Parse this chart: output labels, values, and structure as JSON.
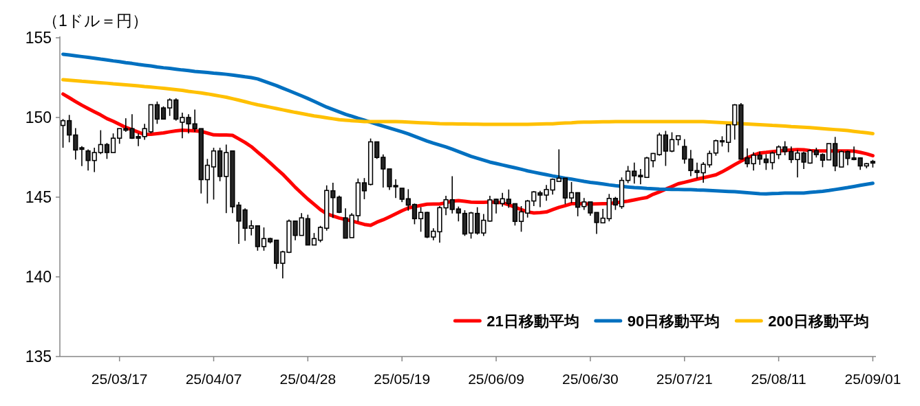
{
  "chart_data": {
    "type": "candlestick",
    "ylabel": "（1ドル＝円）",
    "categories": [
      null,
      null,
      null,
      null,
      null,
      null,
      null,
      null,
      null,
      "25/03/17",
      null,
      null,
      null,
      null,
      null,
      null,
      null,
      null,
      null,
      null,
      null,
      null,
      null,
      null,
      "25/04/07",
      null,
      null,
      null,
      null,
      null,
      null,
      null,
      null,
      null,
      null,
      null,
      null,
      null,
      null,
      "25/04/28",
      null,
      null,
      null,
      null,
      null,
      null,
      null,
      null,
      null,
      null,
      null,
      null,
      null,
      null,
      "25/05/19",
      null,
      null,
      null,
      null,
      null,
      null,
      null,
      null,
      null,
      null,
      null,
      null,
      null,
      null,
      "25/06/09",
      null,
      null,
      null,
      null,
      null,
      null,
      null,
      null,
      null,
      null,
      null,
      null,
      null,
      null,
      "25/06/30",
      null,
      null,
      null,
      null,
      null,
      null,
      null,
      null,
      null,
      null,
      null,
      null,
      null,
      null,
      "25/07/21",
      null,
      null,
      null,
      null,
      null,
      null,
      null,
      null,
      null,
      null,
      null,
      null,
      null,
      null,
      "25/08/11",
      null,
      null,
      null,
      null,
      null,
      null,
      null,
      null,
      null,
      null,
      null,
      null,
      null,
      null,
      "25/09/01"
    ],
    "ohlc": [
      [
        149.5,
        149.9,
        148.1,
        149.8
      ],
      [
        149.8,
        150.16,
        148.44,
        148.9
      ],
      [
        148.9,
        149.33,
        147.36,
        147.96
      ],
      [
        148.1,
        148.2,
        146.95,
        148.0
      ],
      [
        147.9,
        148.0,
        146.67,
        147.3
      ],
      [
        147.3,
        148.1,
        146.57,
        147.8
      ],
      [
        147.8,
        149.2,
        147.7,
        148.3
      ],
      [
        148.3,
        148.4,
        147.4,
        147.8
      ],
      [
        147.8,
        149.0,
        147.8,
        148.7
      ],
      [
        148.7,
        149.3,
        148.35,
        149.3
      ],
      [
        149.3,
        149.95,
        149.1,
        149.2
      ],
      [
        149.3,
        150.2,
        148.65,
        148.7
      ],
      [
        148.8,
        149.0,
        148.2,
        148.7
      ],
      [
        148.8,
        149.6,
        148.6,
        149.3
      ],
      [
        149.1,
        150.8,
        149.0,
        150.8
      ],
      [
        150.8,
        151.0,
        149.6,
        149.9
      ],
      [
        150.6,
        150.7,
        149.9,
        149.9
      ],
      [
        150.6,
        151.2,
        150.1,
        151.1
      ],
      [
        151.1,
        151.2,
        149.8,
        149.9
      ],
      [
        149.7,
        150.3,
        148.7,
        150.0
      ],
      [
        150.0,
        150.2,
        149.0,
        149.6
      ],
      [
        149.6,
        150.5,
        149.1,
        149.3
      ],
      [
        149.3,
        149.3,
        145.23,
        146.1
      ],
      [
        146.1,
        147.4,
        144.6,
        147.0
      ],
      [
        146.9,
        148.1,
        144.85,
        147.9
      ],
      [
        147.9,
        148.1,
        146.0,
        146.3
      ],
      [
        146.3,
        148.3,
        144.0,
        147.8
      ],
      [
        147.9,
        147.9,
        144.0,
        144.4
      ],
      [
        144.5,
        144.7,
        142.07,
        143.5
      ],
      [
        144.2,
        144.3,
        142.26,
        143.05
      ],
      [
        143.05,
        143.55,
        142.6,
        143.2
      ],
      [
        143.2,
        143.2,
        141.64,
        141.9
      ],
      [
        141.9,
        143.1,
        141.64,
        142.4
      ],
      [
        142.4,
        142.46,
        142.1,
        142.2
      ],
      [
        142.3,
        142.3,
        140.5,
        140.85
      ],
      [
        140.85,
        141.64,
        139.9,
        141.57
      ],
      [
        141.54,
        143.6,
        141.5,
        143.5
      ],
      [
        143.5,
        143.5,
        142.3,
        142.6
      ],
      [
        142.6,
        144.0,
        142.6,
        143.7
      ],
      [
        143.65,
        143.9,
        142.0,
        142.0
      ],
      [
        142.0,
        142.75,
        142.0,
        142.4
      ],
      [
        142.3,
        143.2,
        142.17,
        143.1
      ],
      [
        143.05,
        145.74,
        142.9,
        145.42
      ],
      [
        145.4,
        145.9,
        143.7,
        144.97
      ],
      [
        145.0,
        145.1,
        144.0,
        144.05
      ],
      [
        143.7,
        144.3,
        142.43,
        142.43
      ],
      [
        142.46,
        144.0,
        142.46,
        143.87
      ],
      [
        143.84,
        146.17,
        143.47,
        145.9
      ],
      [
        145.9,
        146.2,
        144.87,
        145.4
      ],
      [
        145.8,
        148.68,
        145.74,
        148.47
      ],
      [
        148.47,
        148.47,
        147.4,
        147.49
      ],
      [
        147.5,
        147.68,
        145.6,
        146.77
      ],
      [
        146.77,
        146.77,
        145.45,
        145.66
      ],
      [
        145.73,
        146.12,
        144.95,
        145.65
      ],
      [
        145.56,
        145.56,
        144.69,
        144.87
      ],
      [
        144.9,
        145.5,
        144.15,
        144.5
      ],
      [
        144.54,
        144.6,
        143.3,
        143.65
      ],
      [
        143.65,
        144.37,
        142.83,
        144.04
      ],
      [
        144.04,
        144.08,
        142.43,
        142.5
      ],
      [
        142.5,
        143.05,
        142.29,
        142.86
      ],
      [
        142.83,
        144.44,
        142.14,
        144.34
      ],
      [
        144.33,
        145.09,
        143.87,
        144.84
      ],
      [
        144.84,
        146.31,
        143.98,
        144.23
      ],
      [
        144.26,
        144.41,
        143.48,
        144.01
      ],
      [
        143.98,
        144.18,
        142.57,
        142.69
      ],
      [
        142.75,
        144.08,
        142.4,
        144.01
      ],
      [
        143.98,
        144.37,
        142.65,
        142.75
      ],
      [
        142.75,
        143.94,
        142.57,
        143.55
      ],
      [
        143.5,
        145.09,
        143.47,
        144.83
      ],
      [
        144.87,
        144.9,
        143.98,
        144.59
      ],
      [
        144.6,
        145.27,
        144.41,
        144.9
      ],
      [
        144.87,
        145.48,
        144.33,
        144.59
      ],
      [
        144.59,
        144.59,
        143.22,
        143.48
      ],
      [
        143.48,
        144.44,
        142.83,
        144.08
      ],
      [
        144.0,
        144.83,
        143.72,
        144.76
      ],
      [
        144.76,
        145.38,
        144.44,
        145.33
      ],
      [
        145.27,
        145.4,
        144.37,
        145.13
      ],
      [
        145.13,
        145.76,
        144.77,
        145.48
      ],
      [
        145.45,
        146.17,
        145.16,
        146.12
      ],
      [
        145.99,
        148.0,
        145.99,
        146.19
      ],
      [
        146.19,
        146.19,
        144.56,
        144.95
      ],
      [
        144.95,
        145.95,
        144.63,
        145.28
      ],
      [
        145.28,
        145.28,
        143.8,
        144.37
      ],
      [
        144.41,
        144.95,
        144.2,
        144.7
      ],
      [
        144.7,
        144.7,
        143.84,
        144.01
      ],
      [
        144.04,
        144.04,
        142.69,
        143.41
      ],
      [
        143.39,
        144.27,
        143.37,
        143.68
      ],
      [
        143.65,
        145.2,
        143.48,
        144.92
      ],
      [
        144.92,
        145.02,
        144.2,
        144.51
      ],
      [
        144.41,
        146.24,
        144.27,
        146.05
      ],
      [
        146.05,
        146.96,
        145.88,
        146.63
      ],
      [
        146.63,
        147.17,
        145.85,
        146.34
      ],
      [
        146.37,
        146.77,
        145.81,
        146.28
      ],
      [
        146.24,
        147.53,
        146.21,
        147.46
      ],
      [
        147.29,
        147.77,
        146.88,
        147.74
      ],
      [
        147.67,
        149.04,
        147.6,
        148.9
      ],
      [
        148.9,
        149.16,
        146.96,
        147.89
      ],
      [
        147.89,
        149.07,
        147.82,
        148.61
      ],
      [
        148.61,
        148.85,
        148.25,
        148.85
      ],
      [
        148.18,
        148.64,
        147.1,
        147.39
      ],
      [
        147.39,
        147.96,
        146.31,
        146.67
      ],
      [
        146.67,
        147.17,
        146.17,
        146.55
      ],
      [
        146.53,
        147.2,
        145.91,
        147.06
      ],
      [
        147.03,
        147.92,
        146.86,
        147.74
      ],
      [
        147.77,
        148.61,
        147.6,
        148.54
      ],
      [
        148.54,
        148.82,
        148.18,
        148.47
      ],
      [
        148.44,
        149.54,
        147.82,
        149.54
      ],
      [
        149.54,
        150.84,
        148.61,
        150.79
      ],
      [
        150.79,
        150.91,
        147.39,
        147.39
      ],
      [
        147.46,
        148.06,
        146.88,
        147.1
      ],
      [
        147.1,
        147.82,
        146.67,
        147.63
      ],
      [
        147.63,
        147.86,
        147.03,
        147.39
      ],
      [
        147.39,
        147.7,
        146.71,
        147.17
      ],
      [
        147.17,
        147.86,
        146.74,
        147.77
      ],
      [
        147.67,
        148.25,
        147.39,
        148.15
      ],
      [
        148.15,
        148.51,
        147.63,
        147.86
      ],
      [
        147.86,
        148.18,
        147.14,
        147.36
      ],
      [
        147.36,
        147.96,
        146.24,
        147.77
      ],
      [
        147.77,
        147.86,
        146.77,
        147.2
      ],
      [
        147.14,
        148.0,
        147.1,
        147.92
      ],
      [
        147.92,
        148.1,
        147.49,
        147.67
      ],
      [
        147.67,
        147.75,
        146.88,
        147.32
      ],
      [
        147.34,
        148.36,
        147.34,
        148.36
      ],
      [
        148.36,
        148.78,
        146.63,
        146.96
      ],
      [
        146.89,
        147.92,
        146.86,
        147.86
      ],
      [
        147.86,
        147.92,
        147.0,
        147.43
      ],
      [
        147.46,
        148.18,
        147.32,
        147.36
      ],
      [
        147.46,
        147.49,
        146.71,
        146.96
      ],
      [
        146.96,
        147.14,
        146.81,
        147.1
      ],
      [
        147.24,
        147.34,
        146.86,
        147.14
      ]
    ],
    "series": [
      {
        "name": "21日移動平均",
        "type": "line",
        "color": "#ff0000",
        "values": [
          151.47,
          151.24,
          151.0,
          150.77,
          150.56,
          150.36,
          150.16,
          149.93,
          149.76,
          149.57,
          149.38,
          149.23,
          149.08,
          148.93,
          148.94,
          148.99,
          149.03,
          149.1,
          149.16,
          149.2,
          149.18,
          149.16,
          149.13,
          149.02,
          148.91,
          148.9,
          148.9,
          148.88,
          148.66,
          148.43,
          148.17,
          147.83,
          147.5,
          147.15,
          146.79,
          146.44,
          146.03,
          145.62,
          145.25,
          144.88,
          144.55,
          144.22,
          143.96,
          143.82,
          143.69,
          143.6,
          143.51,
          143.4,
          143.29,
          143.23,
          143.43,
          143.58,
          143.76,
          143.95,
          144.15,
          144.32,
          144.4,
          144.48,
          144.56,
          144.57,
          144.57,
          144.65,
          144.75,
          144.78,
          144.74,
          144.69,
          144.68,
          144.68,
          144.7,
          144.68,
          144.65,
          144.52,
          144.37,
          144.22,
          144.08,
          144.01,
          144.03,
          144.07,
          144.22,
          144.36,
          144.47,
          144.59,
          144.59,
          144.58,
          144.57,
          144.58,
          144.59,
          144.6,
          144.65,
          144.7,
          144.75,
          144.83,
          144.91,
          144.98,
          145.18,
          145.33,
          145.5,
          145.67,
          145.84,
          145.93,
          146.03,
          146.13,
          146.22,
          146.31,
          146.4,
          146.59,
          146.81,
          147.04,
          147.26,
          147.47,
          147.64,
          147.77,
          147.81,
          147.86,
          147.9,
          147.93,
          147.96,
          147.99,
          147.97,
          147.92,
          147.9,
          147.9,
          147.9,
          147.9,
          147.9,
          147.9,
          147.89,
          147.81,
          147.72,
          147.6
        ]
      },
      {
        "name": "90日移動平均",
        "type": "line",
        "color": "#0070c0",
        "values": [
          153.97,
          153.92,
          153.87,
          153.82,
          153.77,
          153.72,
          153.66,
          153.61,
          153.55,
          153.5,
          153.44,
          153.39,
          153.33,
          153.28,
          153.23,
          153.17,
          153.12,
          153.08,
          153.03,
          152.98,
          152.94,
          152.89,
          152.86,
          152.82,
          152.78,
          152.75,
          152.71,
          152.66,
          152.61,
          152.55,
          152.5,
          152.42,
          152.28,
          152.14,
          152.0,
          151.84,
          151.68,
          151.52,
          151.36,
          151.19,
          151.01,
          150.83,
          150.65,
          150.5,
          150.35,
          150.2,
          150.08,
          149.95,
          149.83,
          149.7,
          149.58,
          149.46,
          149.34,
          149.22,
          149.1,
          148.97,
          148.82,
          148.67,
          148.52,
          148.39,
          148.27,
          148.15,
          148.01,
          147.86,
          147.71,
          147.56,
          147.44,
          147.32,
          147.2,
          147.11,
          147.02,
          146.93,
          146.84,
          146.75,
          146.65,
          146.57,
          146.49,
          146.41,
          146.33,
          146.26,
          146.19,
          146.13,
          146.06,
          145.99,
          145.93,
          145.88,
          145.83,
          145.77,
          145.72,
          145.68,
          145.64,
          145.6,
          145.58,
          145.55,
          145.53,
          145.51,
          145.5,
          145.49,
          145.48,
          145.47,
          145.47,
          145.45,
          145.44,
          145.42,
          145.4,
          145.38,
          145.36,
          145.34,
          145.31,
          145.28,
          145.25,
          145.22,
          145.21,
          145.23,
          145.24,
          145.26,
          145.26,
          145.26,
          145.26,
          145.3,
          145.33,
          145.37,
          145.42,
          145.48,
          145.54,
          145.6,
          145.67,
          145.74,
          145.81,
          145.87
        ]
      },
      {
        "name": "200日移動平均",
        "type": "line",
        "color": "#ffc000",
        "values": [
          152.37,
          152.34,
          152.31,
          152.27,
          152.24,
          152.21,
          152.18,
          152.15,
          152.11,
          152.08,
          152.05,
          152.02,
          151.98,
          151.94,
          151.91,
          151.87,
          151.83,
          151.79,
          151.75,
          151.7,
          151.64,
          151.59,
          151.54,
          151.48,
          151.41,
          151.34,
          151.27,
          151.18,
          151.09,
          150.99,
          150.89,
          150.8,
          150.72,
          150.64,
          150.56,
          150.48,
          150.4,
          150.32,
          150.25,
          150.17,
          150.1,
          150.04,
          149.98,
          149.92,
          149.86,
          149.83,
          149.8,
          149.77,
          149.74,
          149.74,
          149.74,
          149.74,
          149.74,
          149.74,
          149.73,
          149.71,
          149.69,
          149.67,
          149.65,
          149.63,
          149.61,
          149.6,
          149.6,
          149.59,
          149.59,
          149.58,
          149.58,
          149.57,
          149.57,
          149.57,
          149.57,
          149.57,
          149.57,
          149.57,
          149.57,
          149.58,
          149.59,
          149.6,
          149.6,
          149.63,
          149.65,
          149.67,
          149.7,
          149.71,
          149.71,
          149.72,
          149.73,
          149.73,
          149.74,
          149.74,
          149.74,
          149.74,
          149.74,
          149.74,
          149.74,
          149.74,
          149.74,
          149.74,
          149.74,
          149.74,
          149.74,
          149.74,
          149.74,
          149.72,
          149.7,
          149.68,
          149.66,
          149.64,
          149.61,
          149.59,
          149.57,
          149.55,
          149.53,
          149.5,
          149.48,
          149.46,
          149.43,
          149.41,
          149.39,
          149.36,
          149.33,
          149.3,
          149.27,
          149.24,
          149.21,
          149.18,
          149.13,
          149.08,
          149.04,
          148.99
        ]
      }
    ],
    "ylim": [
      135,
      155
    ],
    "yticks": [
      135,
      140,
      145,
      150,
      155
    ],
    "legend": "bottom right"
  }
}
